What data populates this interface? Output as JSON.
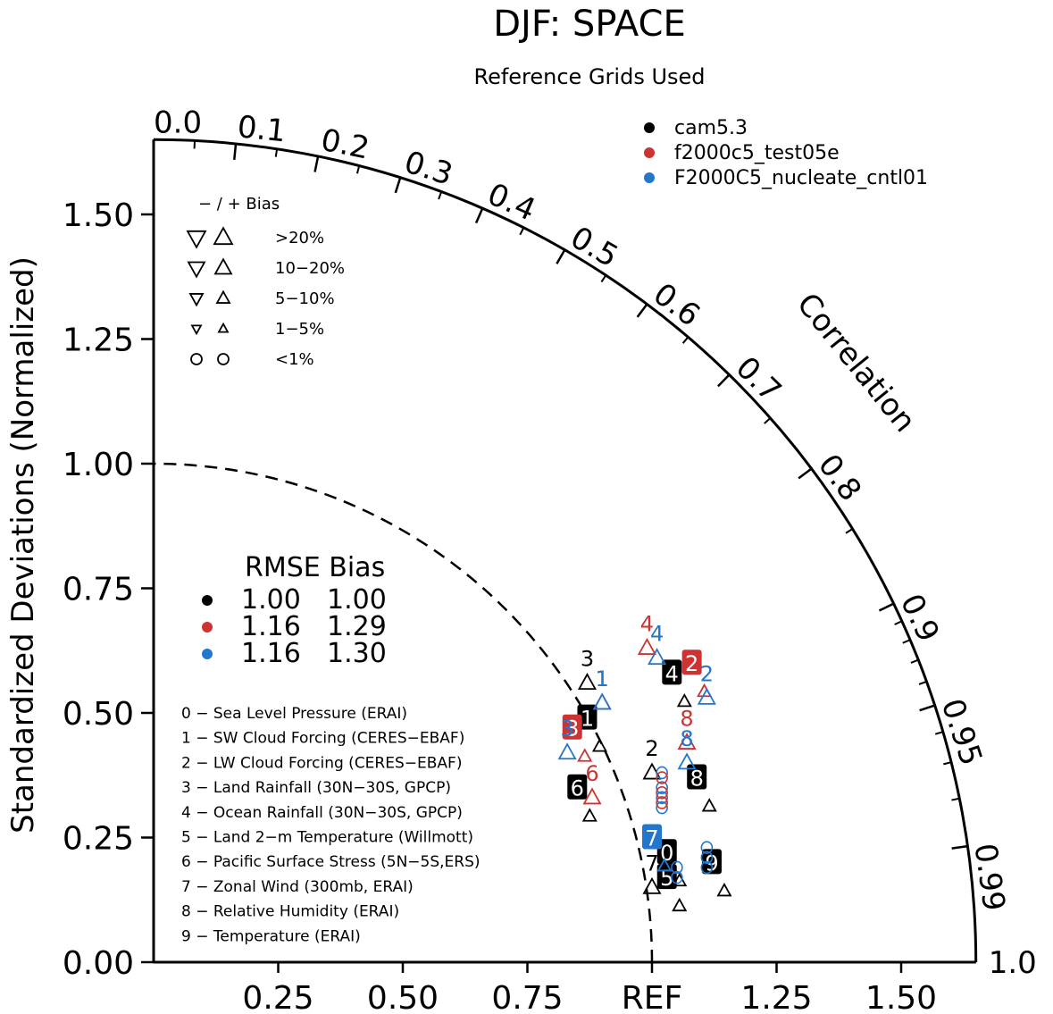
{
  "title": "DJF: SPACE",
  "subtitle": "Reference Grids Used",
  "ylabel": "Standardized Deviations (Normalized)",
  "correlation_label": "Correlation",
  "x_tick_labels": [
    "0.25",
    "0.50",
    "0.75",
    "REF",
    "1.25",
    "1.50"
  ],
  "y_tick_labels": [
    "0.00",
    "0.25",
    "0.50",
    "0.75",
    "1.00",
    "1.25",
    "1.50"
  ],
  "correlation_ticks": [
    "0.0",
    "0.1",
    "0.2",
    "0.3",
    "0.4",
    "0.5",
    "0.6",
    "0.7",
    "0.8",
    "0.9",
    "0.95",
    "0.99",
    "1.0"
  ],
  "bias_legend": {
    "header": "− / +     Bias",
    "rows": [
      ">20%",
      "10−20%",
      "5−10%",
      "1−5%",
      "<1%"
    ]
  },
  "rmse_legend": {
    "header": "RMSE Bias",
    "rows": [
      {
        "rmse": "1.00",
        "bias": "1.00",
        "color": "#000000"
      },
      {
        "rmse": "1.16",
        "bias": "1.29",
        "color": "#cc3333"
      },
      {
        "rmse": "1.16",
        "bias": "1.30",
        "color": "#2277cc"
      }
    ]
  },
  "variables": [
    "0 − Sea Level Pressure (ERAI)",
    "1 − SW Cloud Forcing (CERES−EBAF)",
    "2 − LW Cloud Forcing (CERES−EBAF)",
    "3 − Land Rainfall (30N−30S, GPCP)",
    "4 − Ocean Rainfall (30N−30S, GPCP)",
    "5 − Land 2−m Temperature (Willmott)",
    "6 − Pacific Surface Stress (5N−5S,ERS)",
    "7 − Zonal Wind (300mb, ERAI)",
    "8 − Relative Humidity (ERAI)",
    "9 − Temperature (ERAI)"
  ],
  "chart_data": {
    "type": "scatter",
    "subtype": "taylor-diagram",
    "x_range": [
      0,
      1.65
    ],
    "y_range": [
      0,
      1.65
    ],
    "reference_std": 1.0,
    "grid": false,
    "legend_placement": "top-right",
    "series": [
      {
        "name": "cam5.3",
        "color": "#000000",
        "points": [
          {
            "id": "0",
            "x": 1.03,
            "y": 0.22,
            "filled": true
          },
          {
            "id": "1",
            "x": 0.87,
            "y": 0.49,
            "filled": true
          },
          {
            "id": "2",
            "x": 1.0,
            "y": 0.43,
            "filled": false
          },
          {
            "id": "3",
            "x": 0.87,
            "y": 0.61,
            "filled": false
          },
          {
            "id": "4",
            "x": 1.04,
            "y": 0.58,
            "filled": true
          },
          {
            "id": "5",
            "x": 1.03,
            "y": 0.17,
            "filled": true
          },
          {
            "id": "6",
            "x": 0.85,
            "y": 0.35,
            "filled": true
          },
          {
            "id": "7",
            "x": 1.0,
            "y": 0.2,
            "filled": false
          },
          {
            "id": "8",
            "x": 1.09,
            "y": 0.37,
            "filled": true
          },
          {
            "id": "9",
            "x": 1.12,
            "y": 0.2,
            "filled": true
          }
        ]
      },
      {
        "name": "f2000c5_test05e",
        "color": "#cc3333",
        "points": [
          {
            "id": "1",
            "x": 0.9,
            "y": 0.57,
            "filled": false
          },
          {
            "id": "2",
            "x": 1.08,
            "y": 0.6,
            "filled": true
          },
          {
            "id": "3",
            "x": 0.84,
            "y": 0.47,
            "filled": true
          },
          {
            "id": "4",
            "x": 0.99,
            "y": 0.68,
            "filled": false
          },
          {
            "id": "6",
            "x": 0.88,
            "y": 0.38,
            "filled": false
          },
          {
            "id": "8",
            "x": 1.07,
            "y": 0.49,
            "filled": false
          }
        ]
      },
      {
        "name": "F2000C5_nucleate_cntl01",
        "color": "#2277cc",
        "points": [
          {
            "id": "1",
            "x": 0.9,
            "y": 0.57,
            "filled": false
          },
          {
            "id": "2",
            "x": 1.11,
            "y": 0.58,
            "filled": false
          },
          {
            "id": "3",
            "x": 0.83,
            "y": 0.47,
            "filled": false
          },
          {
            "id": "4",
            "x": 1.01,
            "y": 0.66,
            "filled": false
          },
          {
            "id": "7",
            "x": 1.0,
            "y": 0.25,
            "filled": true
          },
          {
            "id": "8",
            "x": 1.07,
            "y": 0.45,
            "filled": false
          }
        ]
      }
    ]
  }
}
